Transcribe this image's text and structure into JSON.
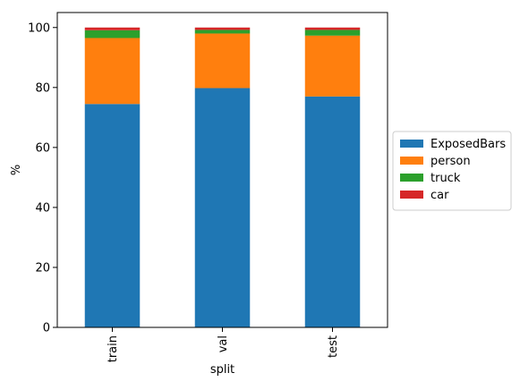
{
  "chart_data": {
    "type": "bar",
    "stacked": true,
    "categories": [
      "train",
      "val",
      "test"
    ],
    "series": [
      {
        "name": "ExposedBars",
        "color": "#1f77b4",
        "values": [
          74.5,
          79.8,
          77.0
        ]
      },
      {
        "name": "person",
        "color": "#ff7f0e",
        "values": [
          22.0,
          18.2,
          20.3
        ]
      },
      {
        "name": "truck",
        "color": "#2ca02c",
        "values": [
          2.6,
          1.2,
          1.9
        ]
      },
      {
        "name": "car",
        "color": "#d62728",
        "values": [
          0.9,
          0.8,
          0.8
        ]
      }
    ],
    "xlabel": "split",
    "ylabel": "%",
    "ylim": [
      0,
      105
    ],
    "yticks": [
      0,
      20,
      40,
      60,
      80,
      100
    ],
    "grid": false,
    "legend_position": "right"
  }
}
